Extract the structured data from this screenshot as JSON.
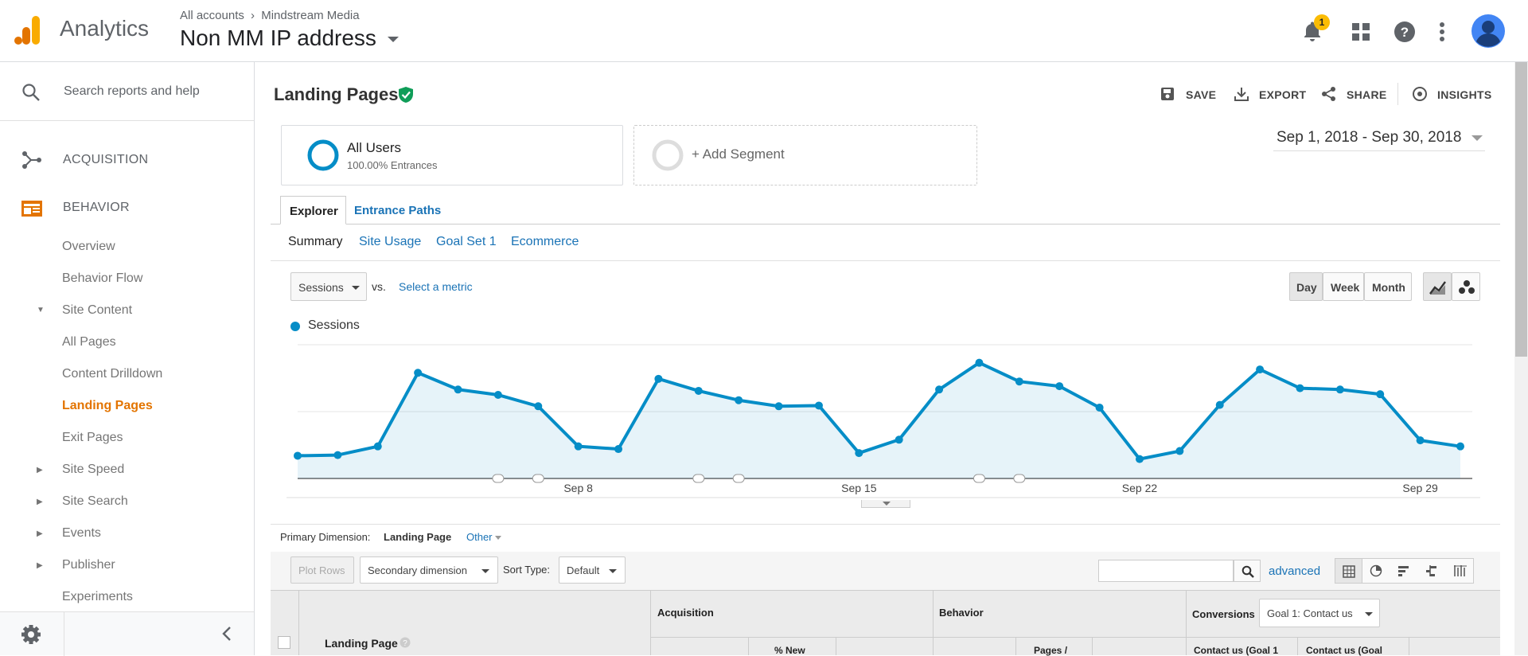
{
  "header": {
    "app_name": "Analytics",
    "breadcrumb": [
      "All accounts",
      "Mindstream Media"
    ],
    "property": "Non MM IP address",
    "notification_count": "1"
  },
  "sidebar": {
    "search_placeholder": "Search reports and help",
    "sections": [
      {
        "label": "ACQUISITION"
      },
      {
        "label": "BEHAVIOR"
      }
    ],
    "items": {
      "overview": "Overview",
      "behavior_flow": "Behavior Flow",
      "site_content": "Site Content",
      "all_pages": "All Pages",
      "content_drilldown": "Content Drilldown",
      "landing_pages": "Landing Pages",
      "exit_pages": "Exit Pages",
      "site_speed": "Site Speed",
      "site_search": "Site Search",
      "events": "Events",
      "publisher": "Publisher",
      "experiments": "Experiments"
    }
  },
  "report": {
    "title": "Landing Pages",
    "actions": {
      "save": "SAVE",
      "export": "EXPORT",
      "share": "SHARE",
      "insights": "INSIGHTS"
    },
    "date_range": "Sep 1, 2018 - Sep 30, 2018",
    "segment": {
      "name": "All Users",
      "detail": "100.00% Entrances"
    },
    "add_segment": "+ Add Segment",
    "tabs": [
      "Explorer",
      "Entrance Paths"
    ],
    "subtabs": [
      "Summary",
      "Site Usage",
      "Goal Set 1",
      "Ecommerce"
    ],
    "metric_select": "Sessions",
    "vs_label": "vs.",
    "select_metric": "Select a metric",
    "granularity": [
      "Day",
      "Week",
      "Month"
    ],
    "colors": {
      "accent": "#e37400",
      "series": "#058dc7",
      "link": "#1a73b6"
    }
  },
  "chart_data": {
    "type": "line",
    "series": [
      {
        "name": "Sessions",
        "values": [
          0.17,
          0.175,
          0.24,
          0.79,
          0.665,
          0.625,
          0.54,
          0.24,
          0.22,
          0.745,
          0.655,
          0.585,
          0.54,
          0.545,
          0.19,
          0.29,
          0.665,
          0.865,
          0.725,
          0.69,
          0.53,
          0.145,
          0.205,
          0.55,
          0.815,
          0.675,
          0.665,
          0.63,
          0.285,
          0.24
        ]
      }
    ],
    "x": [
      1,
      2,
      3,
      4,
      5,
      6,
      7,
      8,
      9,
      10,
      11,
      12,
      13,
      14,
      15,
      16,
      17,
      18,
      19,
      20,
      21,
      22,
      23,
      24,
      25,
      26,
      27,
      28,
      29,
      30
    ],
    "x_tick_labels": [
      {
        "day": 8,
        "label": "Sep 8"
      },
      {
        "day": 15,
        "label": "Sep 15"
      },
      {
        "day": 22,
        "label": "Sep 22"
      },
      {
        "day": 29,
        "label": "Sep 29"
      }
    ],
    "annotations_at_days": [
      6,
      7,
      11,
      12,
      18,
      19
    ],
    "legend_position": "top-left",
    "ylim": [
      0,
      1
    ],
    "grid": true
  },
  "table_controls": {
    "primary_dimension_label": "Primary Dimension:",
    "primary_dimension_value": "Landing Page",
    "other": "Other",
    "plot_rows": "Plot Rows",
    "secondary_dimension": "Secondary dimension",
    "sort_type_label": "Sort Type:",
    "sort_type_value": "Default",
    "advanced": "advanced"
  },
  "table": {
    "col_landing_page": "Landing Page",
    "group_acquisition": "Acquisition",
    "group_behavior": "Behavior",
    "group_conversions": "Conversions",
    "goal_select": "Goal 1: Contact us",
    "col_new": "% New",
    "col_pages": "Pages /",
    "col_contact1": "Contact us (Goal 1",
    "col_contact2": "Contact us (Goal"
  }
}
